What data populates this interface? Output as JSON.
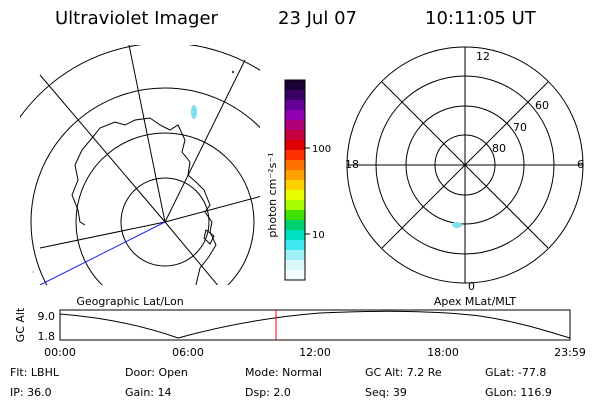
{
  "header": {
    "title": "Ultraviolet Imager",
    "date": "23 Jul 07",
    "time": "10:11:05 UT"
  },
  "left_map": {
    "label": "Geographic Lat/Lon"
  },
  "colorbar": {
    "unit_label": "photon cm⁻²s⁻¹",
    "ticks": [
      {
        "label": "100"
      },
      {
        "label": "10"
      }
    ],
    "colors": [
      "#1a0033",
      "#3a0066",
      "#660099",
      "#8e00b0",
      "#b0007a",
      "#c80040",
      "#e00000",
      "#ff3000",
      "#ff7000",
      "#ffa000",
      "#ffd000",
      "#e8ff00",
      "#a8ff00",
      "#40e000",
      "#00d070",
      "#00e0c0",
      "#40e8f0",
      "#a0f0f8",
      "#d8f8fc",
      "#f4fcff"
    ]
  },
  "right_map": {
    "label": "Apex MLat/MLT",
    "mlt_labels": [
      {
        "text": "12"
      },
      {
        "text": "18"
      },
      {
        "text": "6"
      },
      {
        "text": "0"
      }
    ],
    "lat_labels": [
      {
        "text": "60"
      },
      {
        "text": "70"
      },
      {
        "text": "80"
      }
    ]
  },
  "timeline": {
    "ylabel": "GC Alt",
    "y_ticks": [
      {
        "label": "9.0"
      },
      {
        "label": "1.8"
      }
    ],
    "x_ticks": [
      {
        "label": "00:00"
      },
      {
        "label": "06:00"
      },
      {
        "label": "12:00"
      },
      {
        "label": "18:00"
      },
      {
        "label": "23:59"
      }
    ],
    "marker_color": "#ff0000"
  },
  "info": {
    "row1": [
      "Flt: LBHL",
      "Door: Open",
      "Mode: Normal",
      "GC Alt: 7.2 Re",
      "GLat: -77.8"
    ],
    "row2": [
      "IP: 36.0",
      "Gain: 14",
      "Dsp:     2.0",
      "Seq: 39",
      "GLon: 116.9"
    ]
  }
}
